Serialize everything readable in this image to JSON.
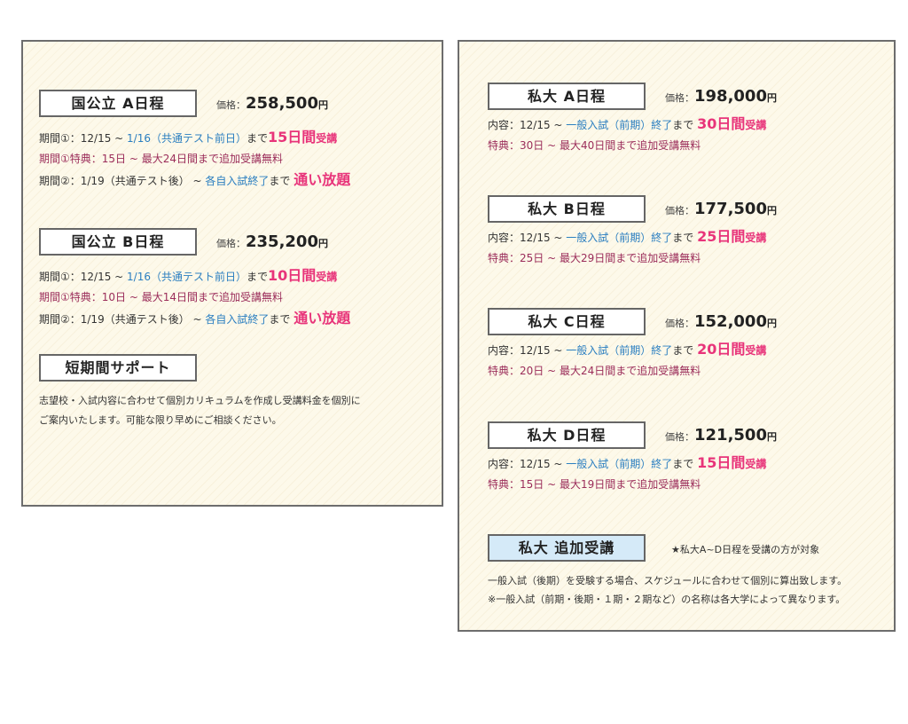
{
  "colors": {
    "blue": "#2a7ec0",
    "pink": "#e8347a",
    "maroon": "#9b2d5a",
    "border": "#6d6d6d",
    "background": "#fdf9ea"
  },
  "left": {
    "plans": [
      {
        "title": "国公立 A日程",
        "price_label": "価格：",
        "price": "258,500",
        "yen": "円",
        "lines": [
          [
            {
              "t": "期間①：12/15 ~ ",
              "s": "n"
            },
            {
              "t": "1/16（共通テスト前日）",
              "s": "b"
            },
            {
              "t": "まで",
              "s": "n"
            },
            {
              "t": "15日間",
              "s": "pb"
            },
            {
              "t": "受講",
              "s": "ps"
            }
          ],
          [
            {
              "t": "期間①特典：15日 ~ 最大24日間まで追加受講無料",
              "s": "m"
            }
          ],
          [
            {
              "t": "期間②：1/19（共通テスト後） ~ ",
              "s": "n"
            },
            {
              "t": "各自入試終了",
              "s": "b"
            },
            {
              "t": "まで ",
              "s": "n"
            },
            {
              "t": "通い放題",
              "s": "pb"
            }
          ]
        ]
      },
      {
        "title": "国公立 B日程",
        "price_label": "価格：",
        "price": "235,200",
        "yen": "円",
        "lines": [
          [
            {
              "t": "期間①：12/15 ~ ",
              "s": "n"
            },
            {
              "t": "1/16（共通テスト前日）",
              "s": "b"
            },
            {
              "t": "まで",
              "s": "n"
            },
            {
              "t": "10日間",
              "s": "pb"
            },
            {
              "t": "受講",
              "s": "ps"
            }
          ],
          [
            {
              "t": "期間①特典：10日 ~ 最大14日間まで追加受講無料",
              "s": "m"
            }
          ],
          [
            {
              "t": "期間②：1/19（共通テスト後） ~ ",
              "s": "n"
            },
            {
              "t": "各自入試終了",
              "s": "b"
            },
            {
              "t": "まで ",
              "s": "n"
            },
            {
              "t": "通い放題",
              "s": "pb"
            }
          ]
        ]
      }
    ],
    "short": {
      "title": "短期間サポート",
      "text": [
        "志望校・入試内容に合わせて個別カリキュラムを作成し受講料金を個別に",
        "ご案内いたします。可能な限り早めにご相談ください。"
      ]
    }
  },
  "right": {
    "plans": [
      {
        "title": "私大 A日程",
        "price_label": "価格：",
        "price": "198,000",
        "yen": "円",
        "lines": [
          [
            {
              "t": "内容：12/15 ~ ",
              "s": "n"
            },
            {
              "t": "一般入試（前期）終了",
              "s": "b"
            },
            {
              "t": "まで ",
              "s": "n"
            },
            {
              "t": "30日間",
              "s": "pb"
            },
            {
              "t": "受講",
              "s": "ps"
            }
          ],
          [
            {
              "t": "特典：30日 ~ 最大40日間まで追加受講無料",
              "s": "m"
            }
          ]
        ]
      },
      {
        "title": "私大 B日程",
        "price_label": "価格：",
        "price": "177,500",
        "yen": "円",
        "lines": [
          [
            {
              "t": "内容：12/15 ~ ",
              "s": "n"
            },
            {
              "t": "一般入試（前期）終了",
              "s": "b"
            },
            {
              "t": "まで ",
              "s": "n"
            },
            {
              "t": "25日間",
              "s": "pb"
            },
            {
              "t": "受講",
              "s": "ps"
            }
          ],
          [
            {
              "t": "特典：25日 ~ 最大29日間まで追加受講無料",
              "s": "m"
            }
          ]
        ]
      },
      {
        "title": "私大 C日程",
        "price_label": "価格：",
        "price": "152,000",
        "yen": "円",
        "lines": [
          [
            {
              "t": "内容：12/15 ~ ",
              "s": "n"
            },
            {
              "t": "一般入試（前期）終了",
              "s": "b"
            },
            {
              "t": "まで ",
              "s": "n"
            },
            {
              "t": "20日間",
              "s": "pb"
            },
            {
              "t": "受講",
              "s": "ps"
            }
          ],
          [
            {
              "t": "特典：20日 ~ 最大24日間まで追加受講無料",
              "s": "m"
            }
          ]
        ]
      },
      {
        "title": "私大 D日程",
        "price_label": "価格：",
        "price": "121,500",
        "yen": "円",
        "lines": [
          [
            {
              "t": "内容：12/15 ~ ",
              "s": "n"
            },
            {
              "t": "一般入試（前期）終了",
              "s": "b"
            },
            {
              "t": "まで ",
              "s": "n"
            },
            {
              "t": "15日間",
              "s": "pb"
            },
            {
              "t": "受講",
              "s": "ps"
            }
          ],
          [
            {
              "t": "特典：15日 ~ 最大19日間まで追加受講無料",
              "s": "m"
            }
          ]
        ]
      }
    ],
    "extra": {
      "title": "私大 追加受講",
      "note": "★私大A~D日程を受講の方が対象",
      "text": [
        "一般入試（後期）を受験する場合、スケジュールに合わせて個別に算出致します。",
        "※一般入試（前期・後期・１期・２期など）の名称は各大学によって異なります。"
      ]
    }
  }
}
